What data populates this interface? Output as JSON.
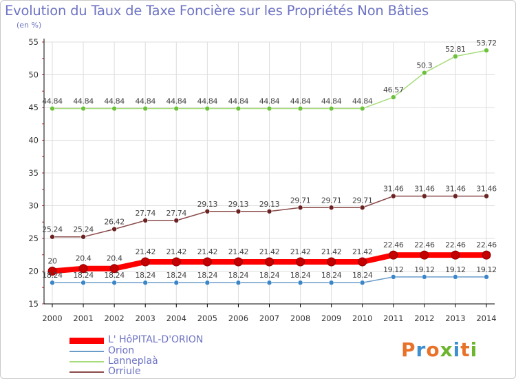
{
  "title": "Evolution du Taux de Taxe Foncière sur les Propriétés Non Bâties",
  "unit_label": "(en %)",
  "brand": "Proxiti",
  "colors": {
    "axis": "#000000",
    "grid": "#dddddd",
    "tick_label": "#333333",
    "brand_letters": [
      "#e8722a",
      "#3e8fcf",
      "#e8722a",
      "#6cb52d",
      "#3e8fcf",
      "#e8722a",
      "#6cb52d"
    ]
  },
  "chart_data": {
    "type": "line",
    "title": "Evolution du Taux de Taxe Foncière sur les Propriétés Non Bâties",
    "xlabel": "",
    "ylabel": "(en %)",
    "x": [
      "2000",
      "2001",
      "2002",
      "2003",
      "2004",
      "2005",
      "2006",
      "2007",
      "2008",
      "2009",
      "2010",
      "2011",
      "2012",
      "2013",
      "2014"
    ],
    "ylim": [
      15,
      55
    ],
    "yticks": [
      15,
      20,
      25,
      30,
      35,
      40,
      45,
      50,
      55
    ],
    "grid": true,
    "legend_position": "bottom-left",
    "series": [
      {
        "name": "L' HôPITAL-D'ORION",
        "color": "#ff0000",
        "marker_color": "#c40000",
        "thick": true,
        "values": [
          20,
          20.4,
          20.4,
          21.42,
          21.42,
          21.42,
          21.42,
          21.42,
          21.42,
          21.42,
          21.42,
          22.46,
          22.46,
          22.46,
          22.46
        ],
        "labels": [
          "20",
          "20.4",
          "20.4",
          "21.42",
          "21.42",
          "21.42",
          "21.42",
          "21.42",
          "21.42",
          "21.42",
          "21.42",
          "22.46",
          "22.46",
          "22.46",
          "22.46"
        ]
      },
      {
        "name": "Orion",
        "color": "#6a9bc9",
        "marker_color": "#3b86c8",
        "thick": false,
        "values": [
          18.24,
          18.24,
          18.24,
          18.24,
          18.24,
          18.24,
          18.24,
          18.24,
          18.24,
          18.24,
          18.24,
          19.12,
          19.12,
          19.12,
          19.12
        ],
        "labels": [
          "18.24",
          "18.24",
          "18.24",
          "18.24",
          "18.24",
          "18.24",
          "18.24",
          "18.24",
          "18.24",
          "18.24",
          "18.24",
          "19.12",
          "19.12",
          "19.12",
          "19.12"
        ]
      },
      {
        "name": "Lanneplaà",
        "color": "#a6dc7a",
        "marker_color": "#6cc13c",
        "thick": false,
        "values": [
          44.84,
          44.84,
          44.84,
          44.84,
          44.84,
          44.84,
          44.84,
          44.84,
          44.84,
          44.84,
          44.84,
          46.57,
          50.3,
          52.81,
          53.72
        ],
        "labels": [
          "44.84",
          "44.84",
          "44.84",
          "44.84",
          "44.84",
          "44.84",
          "44.84",
          "44.84",
          "44.84",
          "44.84",
          "44.84",
          "46.57",
          "50.3",
          "52.81",
          "53.72"
        ]
      },
      {
        "name": "Orriule",
        "color": "#8a4a4a",
        "marker_color": "#6b2222",
        "thick": false,
        "values": [
          25.24,
          25.24,
          26.42,
          27.74,
          27.74,
          29.13,
          29.13,
          29.13,
          29.71,
          29.71,
          29.71,
          31.46,
          31.46,
          31.46,
          31.46
        ],
        "labels": [
          "25.24",
          "25.24",
          "26.42",
          "27.74",
          "27.74",
          "29.13",
          "29.13",
          "29.13",
          "29.71",
          "29.71",
          "29.71",
          "31.46",
          "31.46",
          "31.46",
          "31.46"
        ]
      }
    ]
  }
}
